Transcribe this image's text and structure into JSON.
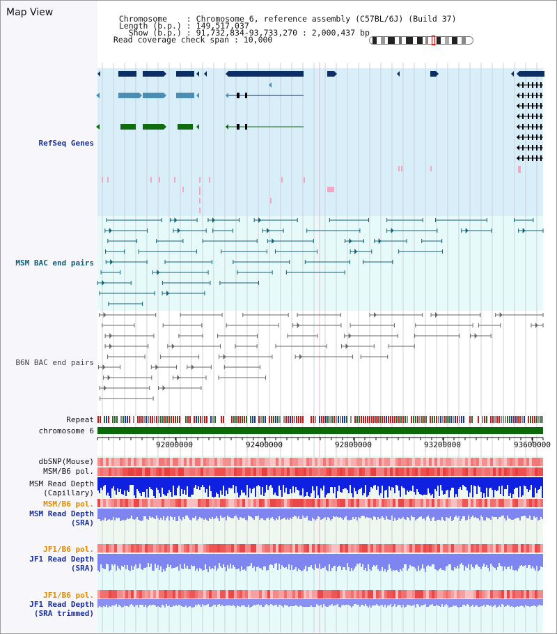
{
  "title": "Map View",
  "info": {
    "chromosome_label": "Chromosome    : ",
    "chromosome_value": "Chromosome 6, reference assembly (C57BL/6J) (Build 37)",
    "length_label": "Length (b.p.) : ",
    "length_value": "149,517,037",
    "show_label": "  Show (b.p.) : ",
    "show_value": "91,732,834-93,733,270 : 2,000,437 bp",
    "coverage_label": "Read coverage check span : ",
    "coverage_value": "10,000"
  },
  "tracks": {
    "refseq": "RefSeq Genes",
    "msm_bac": "MSM BAC end pairs",
    "b6n_bac": "B6N BAC end pairs",
    "repeat": "Repeat",
    "chromosome": "chromosome 6",
    "dbsnp": "dbSNP(Mouse)",
    "msm_b6_pol": "MSM/B6 pol.",
    "msm_depth_cap_1": "MSM Read Depth",
    "msm_depth_cap_2": "(Capillary)",
    "msm_b6_pol2": "MSM/B6 pol.",
    "msm_depth_sra_1": "MSM Read Depth",
    "msm_depth_sra_2": "(SRA)",
    "jf1_b6_pol": "JF1/B6 pol.",
    "jf1_depth_1": "JF1 Read Depth",
    "jf1_depth_2": "(SRA)",
    "jf1_b6_pol2": "JF1/B6 pol.",
    "jf1_depth_t1": "JF1 Read Depth",
    "jf1_depth_t2": "(SRA trimmed)"
  },
  "axis": {
    "ticks": [
      "92000000",
      "92400000",
      "92800000",
      "93200000",
      "93600000"
    ]
  },
  "colors": {
    "refseq_bg": "#d8eef8",
    "msm_bg": "#e6fafa",
    "gene_dark": "#0b2f63",
    "gene_mid": "#4b8db5",
    "gene_green": "#0e6b0e",
    "bac_teal": "#0f5f78",
    "bac_gray": "#666666",
    "label_blue": "#1a2fa0",
    "label_teal": "#0f5f78",
    "label_orange": "#e08a00",
    "depth_blue": "#1020e0",
    "depth_lilac": "#7f85f0",
    "chrom_green": "#0a6a0a"
  }
}
